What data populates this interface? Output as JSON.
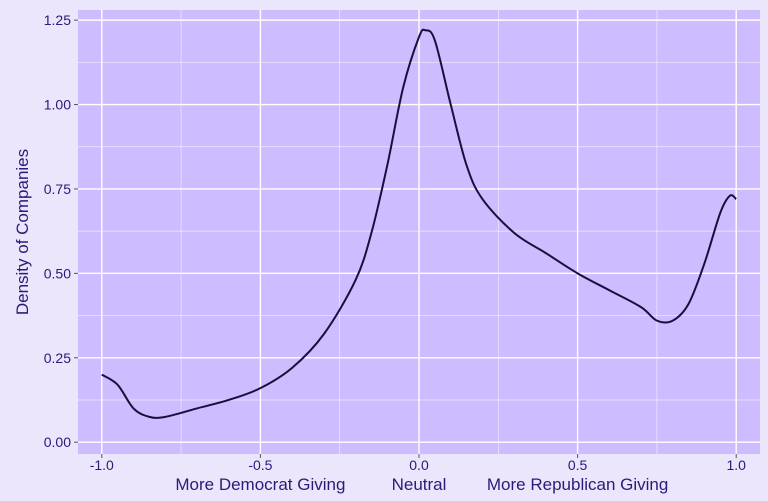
{
  "colors": {
    "page_background": "#ebe6fb",
    "panel_background": "#cdbcff",
    "grid": "#ffffff",
    "line": "#1a0f3a",
    "text": "#2a1a7a"
  },
  "chart_data": {
    "type": "line",
    "title": "",
    "xlabel": "",
    "ylabel": "Density of Companies",
    "xlim": [
      -1.075,
      1.075
    ],
    "ylim": [
      -0.035,
      1.28
    ],
    "grid": true,
    "x_ticks": [
      {
        "value": -1.0,
        "label": "-1.0"
      },
      {
        "value": -0.5,
        "label": "-0.5"
      },
      {
        "value": 0.0,
        "label": "0.0"
      },
      {
        "value": 0.5,
        "label": "0.5"
      },
      {
        "value": 1.0,
        "label": "1.0"
      }
    ],
    "y_ticks": [
      {
        "value": 0.0,
        "label": "0.00"
      },
      {
        "value": 0.25,
        "label": "0.25"
      },
      {
        "value": 0.5,
        "label": "0.50"
      },
      {
        "value": 0.75,
        "label": "0.75"
      },
      {
        "value": 1.0,
        "label": "1.00"
      },
      {
        "value": 1.25,
        "label": "1.25"
      }
    ],
    "x_category_labels": [
      {
        "value": -0.5,
        "label": "More Democrat Giving"
      },
      {
        "value": 0.0,
        "label": "Neutral"
      },
      {
        "value": 0.5,
        "label": "More Republican Giving"
      }
    ],
    "series": [
      {
        "x": [
          -1.0,
          -0.95,
          -0.9,
          -0.85,
          -0.8,
          -0.7,
          -0.6,
          -0.5,
          -0.4,
          -0.3,
          -0.2,
          -0.15,
          -0.1,
          -0.05,
          0.0,
          0.02,
          0.05,
          0.1,
          0.15,
          0.2,
          0.3,
          0.4,
          0.5,
          0.6,
          0.7,
          0.75,
          0.8,
          0.85,
          0.9,
          0.95,
          0.98,
          1.0
        ],
        "y": [
          0.2,
          0.17,
          0.1,
          0.075,
          0.075,
          0.1,
          0.125,
          0.16,
          0.22,
          0.32,
          0.48,
          0.62,
          0.82,
          1.05,
          1.2,
          1.22,
          1.19,
          1.0,
          0.82,
          0.72,
          0.62,
          0.56,
          0.5,
          0.45,
          0.4,
          0.36,
          0.36,
          0.41,
          0.53,
          0.68,
          0.73,
          0.72
        ]
      }
    ]
  }
}
